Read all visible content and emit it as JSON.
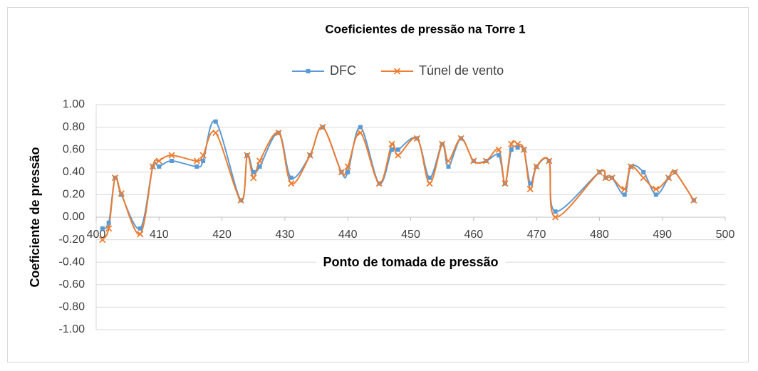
{
  "chart_data": {
    "type": "line",
    "title": "Coeficientes de pressão na Torre 1",
    "x_label": "Ponto de tomada de pressão",
    "y_label": "Coeficiente de pressão",
    "x": [
      401,
      402,
      403,
      404,
      407,
      409,
      410,
      412,
      416,
      417,
      419,
      423,
      424,
      425,
      426,
      429,
      431,
      434,
      436,
      439,
      440,
      442,
      445,
      447,
      448,
      451,
      453,
      455,
      456,
      458,
      460,
      462,
      464,
      465,
      466,
      467,
      468,
      469,
      470,
      472,
      473,
      480,
      481,
      482,
      484,
      485,
      487,
      489,
      491,
      492,
      495
    ],
    "series": [
      {
        "name": "DFC",
        "color": "#5b9bd5",
        "marker": "square",
        "values": [
          -0.1,
          -0.05,
          0.35,
          0.2,
          -0.1,
          0.45,
          0.45,
          0.5,
          0.45,
          0.5,
          0.85,
          0.15,
          0.55,
          0.4,
          0.45,
          0.75,
          0.35,
          0.55,
          0.8,
          0.4,
          0.4,
          0.8,
          0.3,
          0.6,
          0.6,
          0.7,
          0.35,
          0.65,
          0.45,
          0.7,
          0.5,
          0.5,
          0.55,
          0.3,
          0.6,
          0.62,
          0.6,
          0.3,
          0.45,
          0.5,
          0.05,
          0.4,
          0.35,
          0.35,
          0.2,
          0.45,
          0.4,
          0.2,
          0.35,
          0.4,
          0.15
        ]
      },
      {
        "name": "Túnel de vento",
        "color": "#ed7d31",
        "marker": "x",
        "values": [
          -0.2,
          -0.1,
          0.35,
          0.21,
          -0.15,
          0.45,
          0.5,
          0.55,
          0.5,
          0.55,
          0.75,
          0.15,
          0.55,
          0.35,
          0.5,
          0.75,
          0.3,
          0.55,
          0.8,
          0.4,
          0.45,
          0.75,
          0.3,
          0.65,
          0.55,
          0.7,
          0.3,
          0.65,
          0.5,
          0.7,
          0.5,
          0.5,
          0.6,
          0.3,
          0.65,
          0.65,
          0.6,
          0.25,
          0.45,
          0.5,
          0,
          0.4,
          0.35,
          0.35,
          0.25,
          0.45,
          0.35,
          0.25,
          0.35,
          0.4,
          0.15
        ]
      }
    ],
    "xlim": [
      400,
      500
    ],
    "xticks": [
      400,
      410,
      420,
      430,
      440,
      450,
      460,
      470,
      480,
      490,
      500
    ],
    "ylim": [
      -1,
      1
    ],
    "yticks": [
      {
        "value": -1,
        "label": "-1.00"
      },
      {
        "value": -0.8,
        "label": "-0.80"
      },
      {
        "value": -0.6,
        "label": "-0.60"
      },
      {
        "value": -0.4,
        "label": "-0.40"
      },
      {
        "value": -0.2,
        "label": "-0.20"
      },
      {
        "value": 0,
        "label": "0.00"
      },
      {
        "value": 0.2,
        "label": "0.20"
      },
      {
        "value": 0.4,
        "label": "0.40"
      },
      {
        "value": 0.6,
        "label": "0.60"
      },
      {
        "value": 0.8,
        "label": "0.80"
      },
      {
        "value": 1,
        "label": "1.00"
      }
    ],
    "grid": true,
    "legend": "top"
  }
}
